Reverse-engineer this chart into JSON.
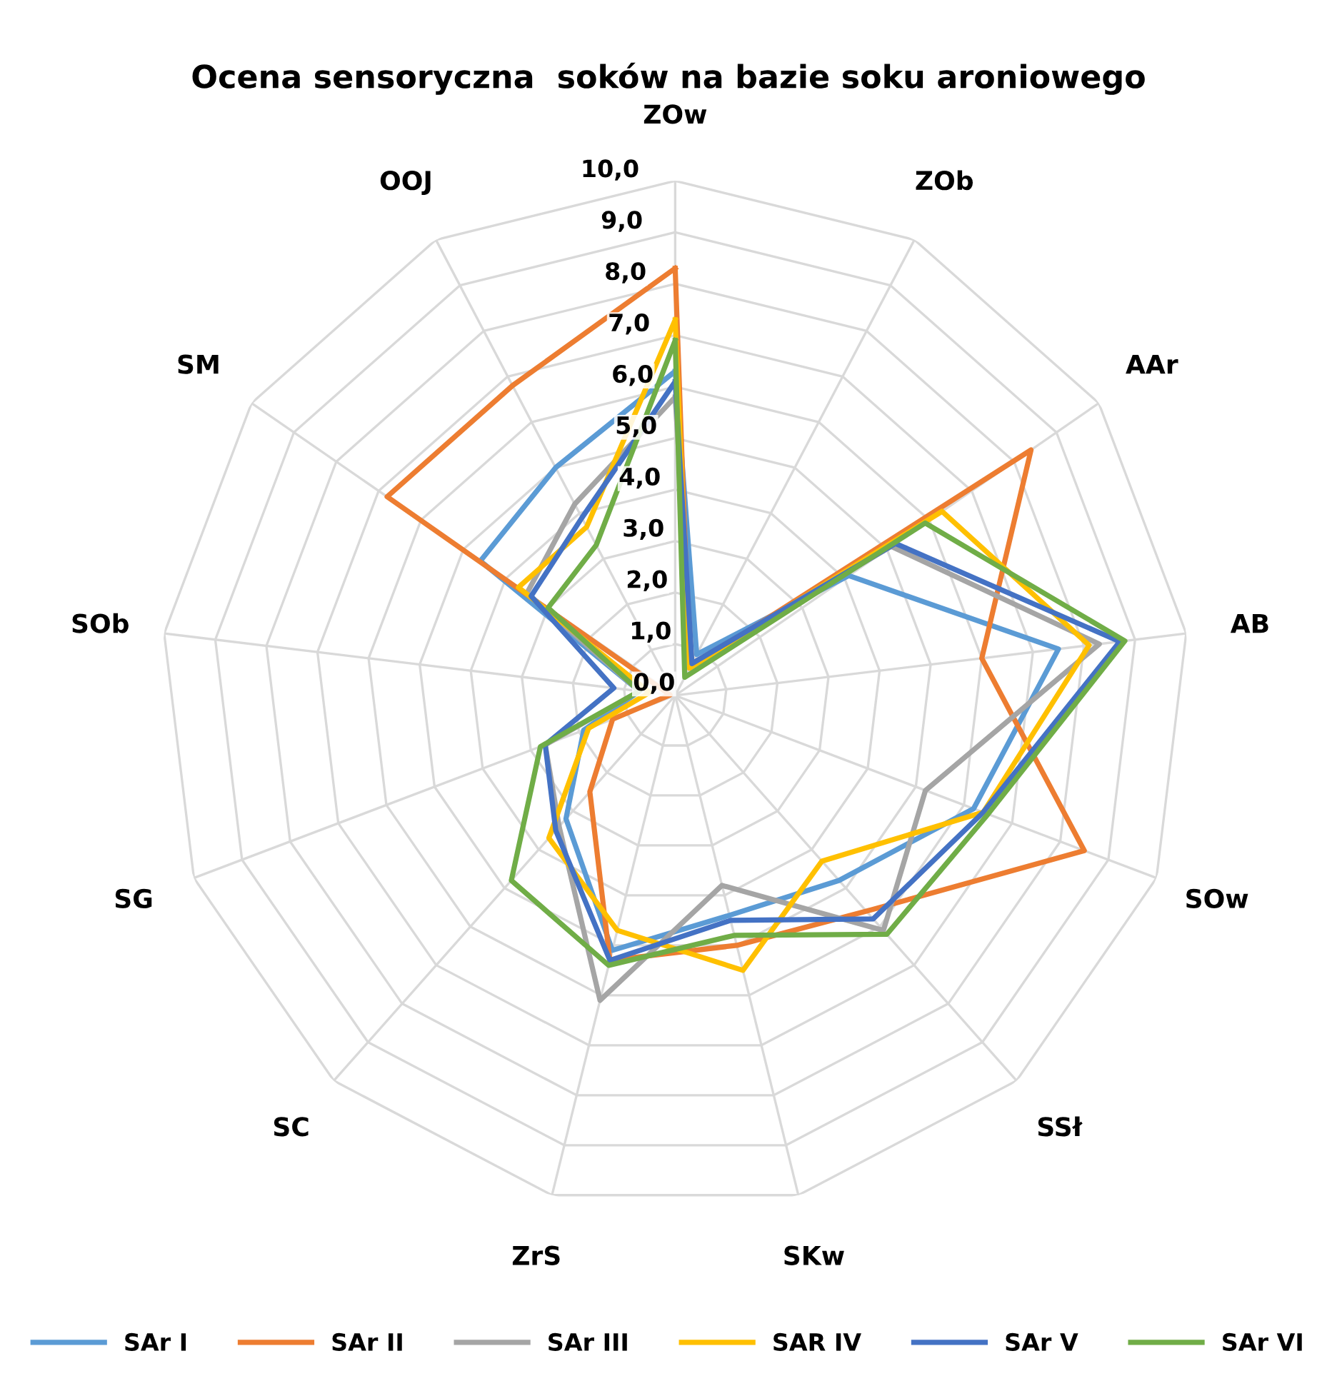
{
  "chart_data": {
    "type": "radar",
    "title": "Ocena sensoryczna  soków na bazie soku aroniowego",
    "categories": [
      "ZOw",
      "ZOb",
      "AAr",
      "AB",
      "SOw",
      "SSł",
      "SKw",
      "ZrS",
      "SC",
      "SG",
      "SOb",
      "SM",
      "OOJ"
    ],
    "ylim": [
      0,
      10
    ],
    "yticks": [
      {
        "value": 0,
        "label": "0,0"
      },
      {
        "value": 1,
        "label": "1,0"
      },
      {
        "value": 2,
        "label": "2,0"
      },
      {
        "value": 3,
        "label": "3,0"
      },
      {
        "value": 4,
        "label": "4,0"
      },
      {
        "value": 5,
        "label": "5,0"
      },
      {
        "value": 6,
        "label": "6,0"
      },
      {
        "value": 7,
        "label": "7,0"
      },
      {
        "value": 8,
        "label": "8,0"
      },
      {
        "value": 9,
        "label": "9,0"
      },
      {
        "value": 10,
        "label": "10,0"
      }
    ],
    "grid": true,
    "legend": "bottom",
    "marker": "none",
    "line_style": "solid",
    "series": [
      {
        "name": "SAr I",
        "color": "#5b9bd5",
        "values": [
          6.3,
          0.9,
          4.1,
          7.5,
          6.2,
          4.8,
          4.4,
          5.1,
          3.2,
          1.9,
          0.7,
          4.6,
          5.0
        ]
      },
      {
        "name": "SAr II",
        "color": "#ed7d31",
        "values": [
          8.3,
          0.6,
          8.4,
          6.0,
          8.5,
          5.6,
          5.0,
          5.3,
          2.5,
          1.3,
          0.1,
          6.8,
          6.8
        ]
      },
      {
        "name": "SAr III",
        "color": "#a5a5a5",
        "values": [
          5.8,
          0.7,
          5.1,
          8.3,
          5.2,
          6.1,
          3.8,
          6.1,
          3.4,
          2.7,
          0.7,
          3.5,
          4.2
        ]
      },
      {
        "name": "SAR IV",
        "color": "#ffc000",
        "values": [
          7.3,
          0.6,
          6.3,
          8.1,
          6.4,
          4.3,
          5.5,
          4.7,
          3.7,
          1.8,
          0.5,
          3.7,
          3.7
        ]
      },
      {
        "name": "SAr V",
        "color": "#4472c4",
        "values": [
          6.1,
          0.7,
          5.2,
          8.7,
          6.4,
          5.8,
          4.5,
          5.3,
          3.5,
          2.7,
          1.2,
          3.4,
          3.9
        ]
      },
      {
        "name": "SAr VI",
        "color": "#70ad47",
        "values": [
          6.9,
          0.4,
          5.9,
          8.8,
          6.5,
          6.2,
          4.8,
          5.4,
          4.8,
          2.8,
          0.7,
          3.0,
          3.3
        ]
      }
    ]
  }
}
